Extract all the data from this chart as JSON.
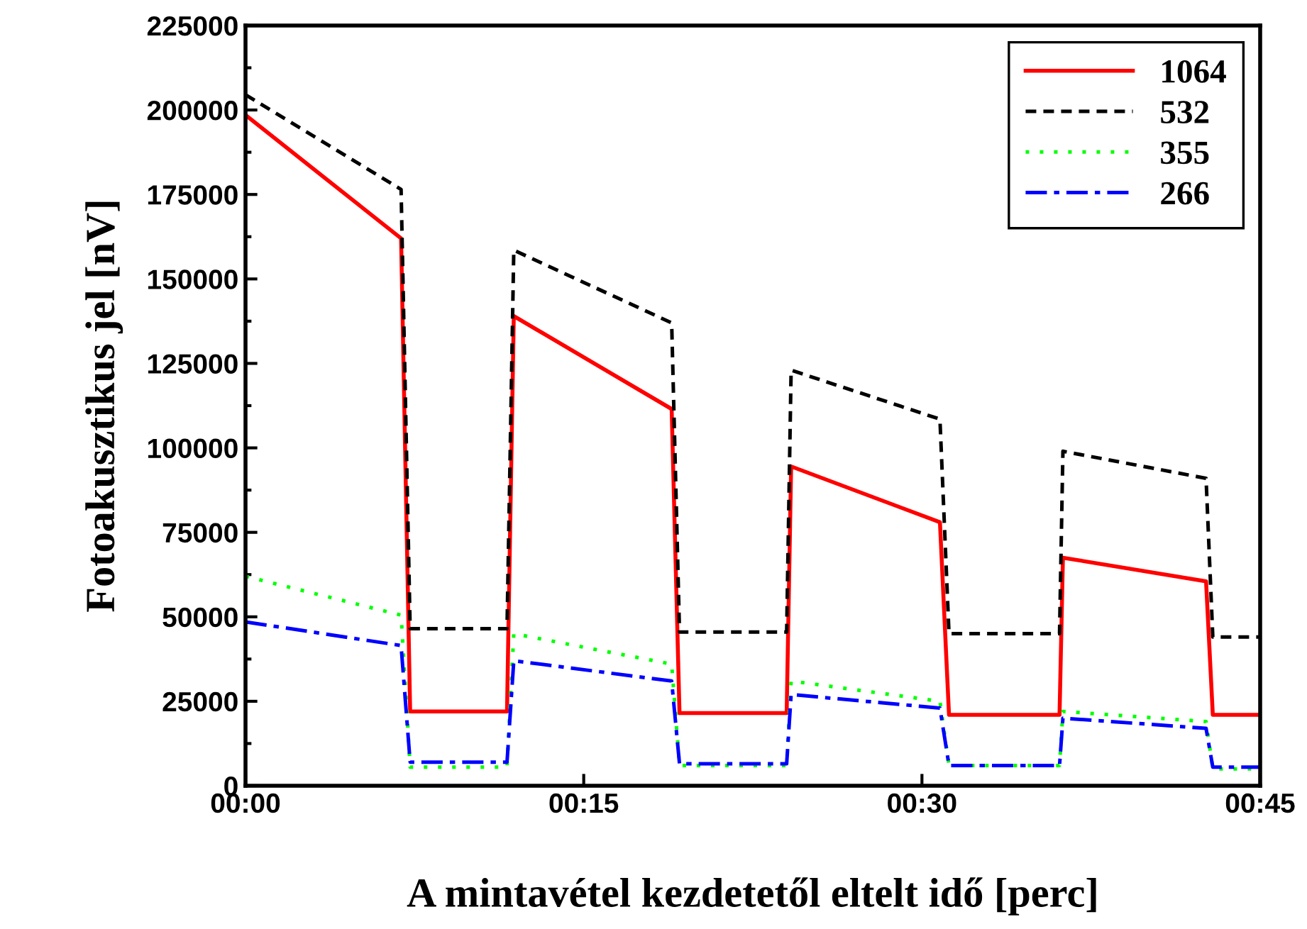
{
  "chart_data": {
    "type": "line",
    "xlabel": "A mintavétel kezdetetől eltelt idő [perc]",
    "ylabel": "Fotoakusztikus jel [nV]",
    "x": [
      0,
      0.115,
      0.1217,
      0.1933,
      0.1983,
      0.315,
      0.3208,
      0.4,
      0.4033,
      0.5133,
      0.52,
      0.6017,
      0.6042,
      0.71,
      0.715,
      0.75
    ],
    "series": [
      {
        "name": "1064",
        "color": "#ff0000",
        "line_style": "solid",
        "values": [
          198500,
          162000,
          22000,
          22000,
          139000,
          111500,
          21500,
          21500,
          94500,
          78000,
          21000,
          21000,
          67500,
          60500,
          21000,
          21000
        ]
      },
      {
        "name": "532",
        "color": "#000000",
        "line_style": "dashed",
        "values": [
          204500,
          176500,
          46500,
          46500,
          158500,
          137000,
          45500,
          45500,
          123000,
          108500,
          45000,
          45000,
          99000,
          91000,
          44000,
          44000
        ]
      },
      {
        "name": "355",
        "color": "#00ff00",
        "line_style": "dotted",
        "values": [
          62000,
          50500,
          5500,
          5500,
          45000,
          36000,
          6000,
          6000,
          31000,
          25000,
          6000,
          6000,
          22000,
          19000,
          5000,
          5000
        ]
      },
      {
        "name": "266",
        "color": "#0000ff",
        "line_style": "dashdot",
        "values": [
          48500,
          41500,
          7000,
          7000,
          37000,
          31000,
          6500,
          6500,
          27000,
          23000,
          6000,
          6000,
          20000,
          17000,
          5500,
          5500
        ]
      }
    ],
    "xlim": [
      0,
      0.75
    ],
    "xticks": [
      {
        "value": 0,
        "label": "00:00"
      },
      {
        "value": 0.25,
        "label": "00:15"
      },
      {
        "value": 0.5,
        "label": "00:30"
      },
      {
        "value": 0.75,
        "label": "00:45"
      }
    ],
    "ylim": [
      0,
      225000
    ],
    "yticks": [
      0,
      25000,
      50000,
      75000,
      100000,
      125000,
      150000,
      175000,
      200000,
      225000
    ],
    "legend": "top right",
    "grid": false,
    "marker": "none"
  }
}
